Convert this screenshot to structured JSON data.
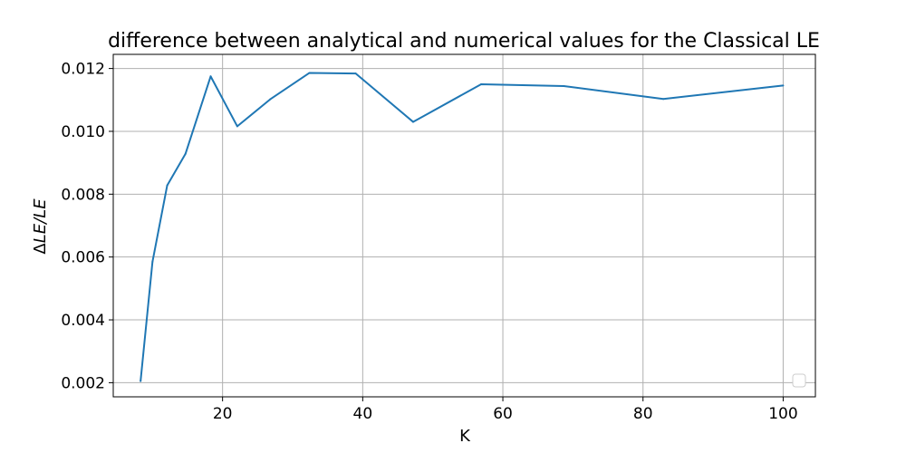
{
  "chart_data": {
    "type": "line",
    "title": "difference between analytical and numerical values for the Classical LE",
    "xlabel": "K",
    "ylabel_prefix": "Δ",
    "ylabel_main": "LE/LE",
    "xlim": [
      4.4,
      104.6
    ],
    "ylim": [
      0.00155,
      0.01245
    ],
    "x_ticks": [
      20,
      40,
      60,
      80,
      100
    ],
    "x_tick_labels": [
      "20",
      "40",
      "60",
      "80",
      "100"
    ],
    "y_ticks": [
      0.002,
      0.004,
      0.006,
      0.008,
      0.01,
      0.012
    ],
    "y_tick_labels": [
      "0.002",
      "0.004",
      "0.006",
      "0.008",
      "0.010",
      "0.012"
    ],
    "grid": true,
    "legend": "bottom-right",
    "series": [
      {
        "color": "#1f77b4",
        "x": [
          8.3,
          10.0,
          12.1,
          14.7,
          18.3,
          22.1,
          26.8,
          32.4,
          39.0,
          47.2,
          56.9,
          68.7,
          82.9,
          100.0
        ],
        "y": [
          0.00205,
          0.00585,
          0.00828,
          0.00928,
          0.01175,
          0.01016,
          0.01102,
          0.01186,
          0.01184,
          0.0103,
          0.0115,
          0.01144,
          0.01103,
          0.01146
        ]
      }
    ]
  }
}
